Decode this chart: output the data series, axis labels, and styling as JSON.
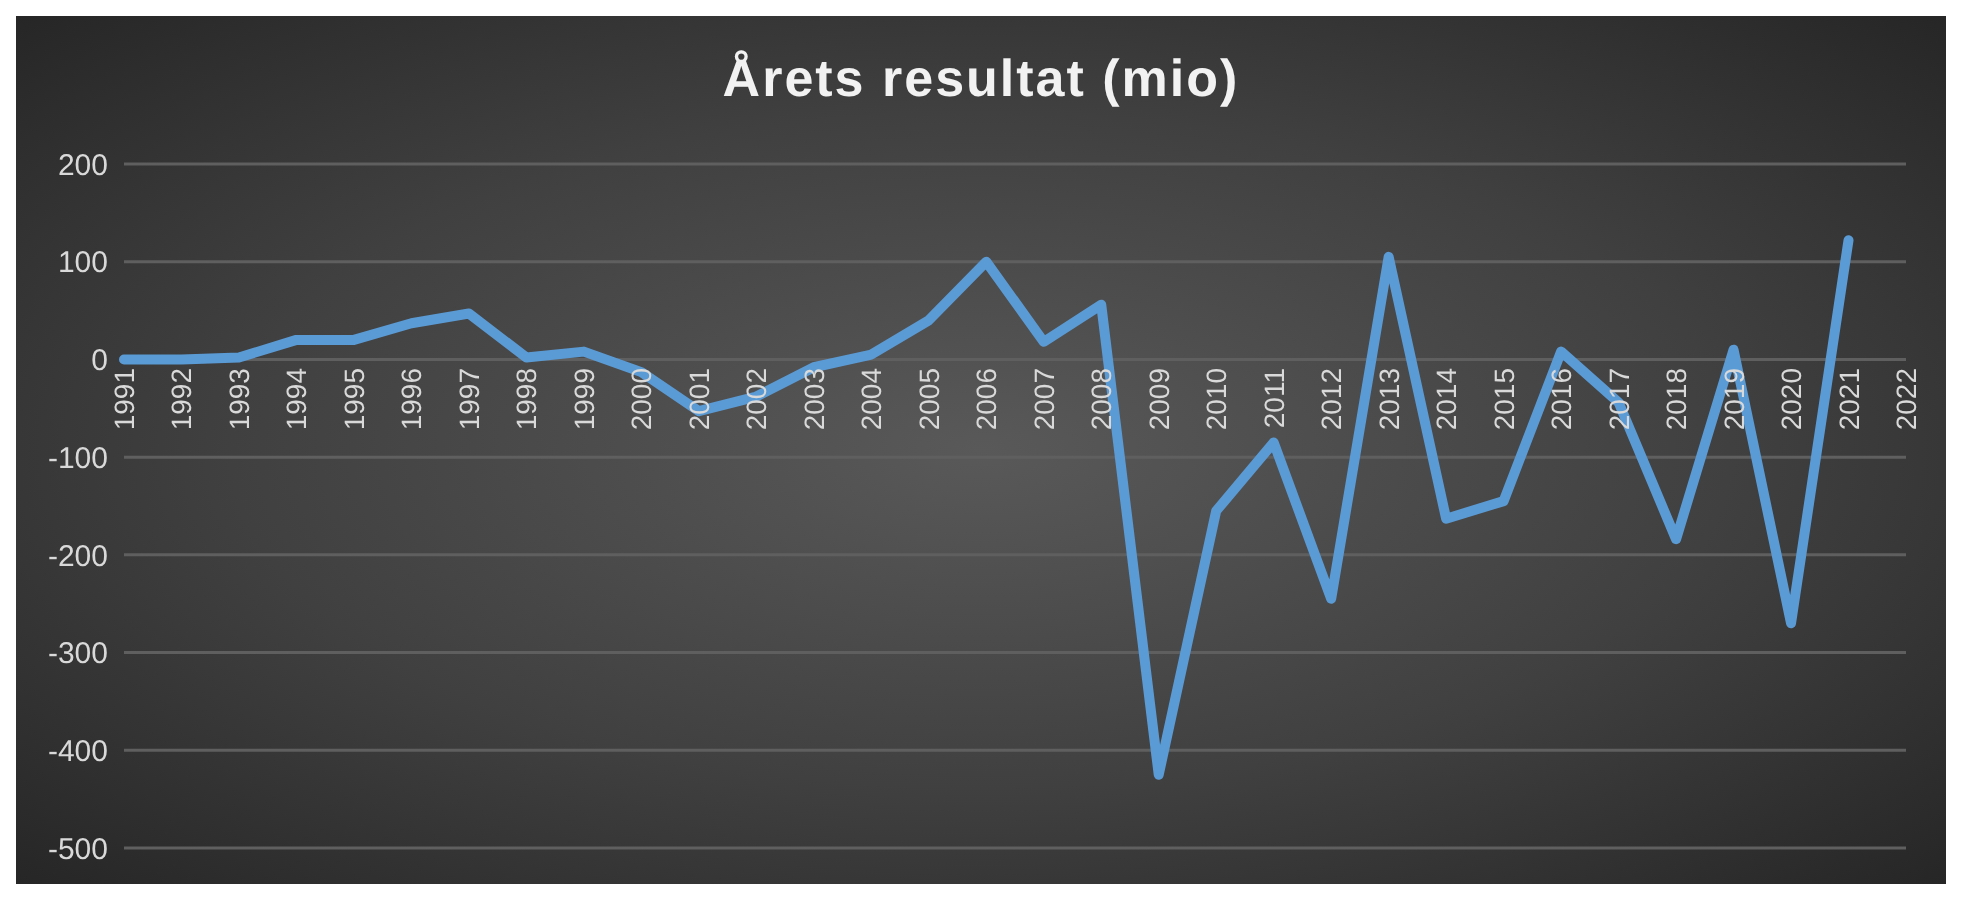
{
  "chart_data": {
    "type": "line",
    "title": "Årets resultat (mio)",
    "categories": [
      "1991",
      "1992",
      "1993",
      "1994",
      "1995",
      "1996",
      "1997",
      "1998",
      "1999",
      "2000",
      "2001",
      "2002",
      "2003",
      "2004",
      "2005",
      "2006",
      "2007",
      "2008",
      "2009",
      "2010",
      "2011",
      "2012",
      "2013",
      "2014",
      "2015",
      "2016",
      "2017",
      "2018",
      "2019",
      "2020",
      "2021",
      "2022"
    ],
    "series": [
      {
        "color": "#5b9bd5",
        "values": [
          0,
          0,
          2,
          20,
          20,
          37,
          47,
          2,
          8,
          -13,
          -53,
          -38,
          -8,
          5,
          40,
          100,
          18,
          56,
          -425,
          -155,
          -85,
          -245,
          105,
          -163,
          -145,
          8,
          -44,
          -184,
          10,
          -270,
          122,
          null
        ]
      }
    ],
    "ylim": [
      -500,
      200
    ],
    "yticks": [
      -500,
      -400,
      -300,
      -200,
      -100,
      0,
      100,
      200
    ],
    "grid": "y",
    "marker": "none",
    "line_style": "solid"
  }
}
